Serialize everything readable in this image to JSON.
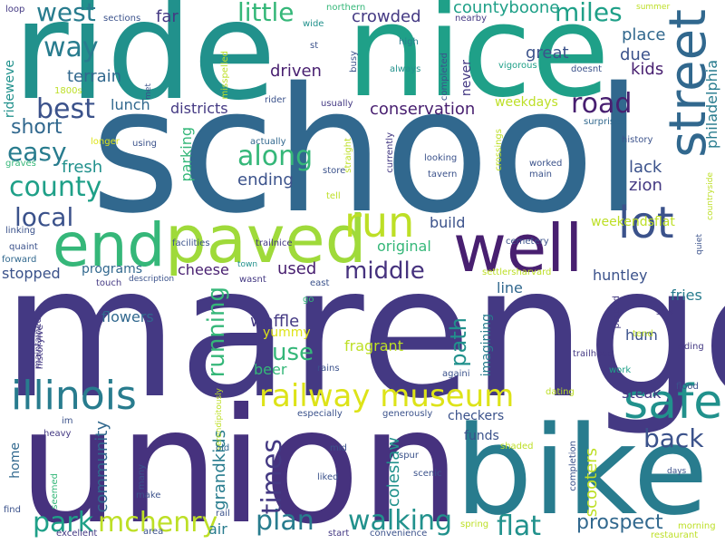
{
  "words": {
    "school": "school",
    "marengo": "marengo",
    "union": "union",
    "ride": "ride",
    "nice": "nice",
    "bike": "bike",
    "paved": "paved",
    "well": "well",
    "end": "end",
    "street": "street",
    "safe": "safe",
    "illinois": "illinois",
    "railway_museum": "railway museum",
    "run": "run",
    "lot": "lot",
    "walking": "walking",
    "mchenry": "mchenry",
    "plan": "plan",
    "flat": "flat",
    "park": "park",
    "times": "times",
    "road": "road",
    "along": "along",
    "county": "county",
    "best": "best",
    "way": "way",
    "west": "west",
    "little": "little",
    "miles": "miles",
    "local": "local",
    "easy": "easy",
    "short": "short",
    "middle": "middle",
    "back": "back",
    "prospect": "prospect",
    "running": "running",
    "use": "use",
    "path": "path",
    "grandkids": "grandkids",
    "community": "community",
    "coleslaw": "coleslaw",
    "scooters": "scooters",
    "countyboone": "countyboone",
    "crowded": "crowded",
    "far": "far",
    "conservation": "conservation",
    "philadelphia": "philadelphia",
    "great": "great",
    "due": "due",
    "kids": "kids",
    "place": "place",
    "terrain": "terrain",
    "lunch": "lunch",
    "districts": "districts",
    "driven": "driven",
    "fresh": "fresh",
    "parking": "parking",
    "ending": "ending",
    "zion": "zion",
    "lack": "lack",
    "build": "build",
    "original": "original",
    "weekendsflat": "weekendsflat",
    "huntley": "huntley",
    "fries": "fries",
    "cheese": "cheese",
    "programs": "programs",
    "stopped": "stopped",
    "used": "used",
    "line": "line",
    "flowers": "flowers",
    "waffle": "waffle",
    "yummy": "yummy",
    "hum": "hum",
    "fragrant": "fragrant",
    "beer": "beer",
    "steak": "steak",
    "checkers": "checkers",
    "funds": "funds",
    "air": "air",
    "home": "home",
    "weekdays": "weekdays",
    "never": "never",
    "imagining": "imagining",
    "rideweve": "rideweve",
    "loop": "loop",
    "sections": "sections",
    "northern": "northern",
    "nearby": "nearby",
    "summer": "summer",
    "wide": "wide",
    "st": "st",
    "high": "high",
    "busy": "busy",
    "completed": "completed",
    "always": "always",
    "vigorous": "vigorous",
    "doesnt": "doesnt",
    "1800s": "1800s",
    "met": "met",
    "misspelled": "misspelled",
    "rider": "rider",
    "usually": "usually",
    "currently": "currently",
    "surprised": "surprised",
    "history": "history",
    "longer": "longer",
    "using": "using",
    "actually": "actually",
    "straight": "straight",
    "crossings": "crossings",
    "looking": "looking",
    "worked": "worked",
    "main": "main",
    "graves": "graves",
    "store": "store",
    "tavern": "tavern",
    "tell": "tell",
    "countryside": "countryside",
    "linking": "linking",
    "facilities": "facilities",
    "trailnice": "trailnice",
    "cemetery": "cemetery",
    "quaint": "quaint",
    "forward": "forward",
    "town": "town",
    "settlersharvard": "settlersharvard",
    "quiet": "quiet",
    "touch": "touch",
    "description": "description",
    "wasnt": "wasnt",
    "east": "east",
    "go": "go",
    "paused": "paused",
    "tend": "tend",
    "saw": "saw",
    "riding": "riding",
    "maintained": "maintained",
    "trailhead": "trailhead",
    "historyive": "historyive",
    "rains": "rains",
    "againi": "againi",
    "work": "work",
    "flood": "flood",
    "dating": "dating",
    "serendipitously": "serendipitously",
    "im": "im",
    "especially": "especially",
    "generously": "generously",
    "heavy": "heavy",
    "mid": "mid",
    "spur": "spur",
    "shaded": "shaded",
    "old": "old",
    "liked": "liked",
    "scenic": "scenic",
    "completion": "completion",
    "days": "days",
    "many": "many",
    "make": "make",
    "seemed": "seemed",
    "rail": "rail",
    "find": "find",
    "spring": "spring",
    "morning": "morning",
    "excellent": "excellent",
    "area": "area",
    "start": "start",
    "convenience": "convenience",
    "restaurant": "restaurant"
  },
  "colors": {
    "navy": "#443983",
    "deep_purple": "#481f70",
    "dark_purple": "#46327e",
    "slate_blue": "#3b528b",
    "steel_blue": "#31688e",
    "teal_blue": "#287c8e",
    "teal": "#21918c",
    "sea_green": "#1fa088",
    "green": "#35b779",
    "light_green": "#6ece58",
    "lime": "#9fda3a",
    "yellow_green": "#bddf26",
    "yellow": "#dde318",
    "bright_yellow": "#fde725"
  }
}
